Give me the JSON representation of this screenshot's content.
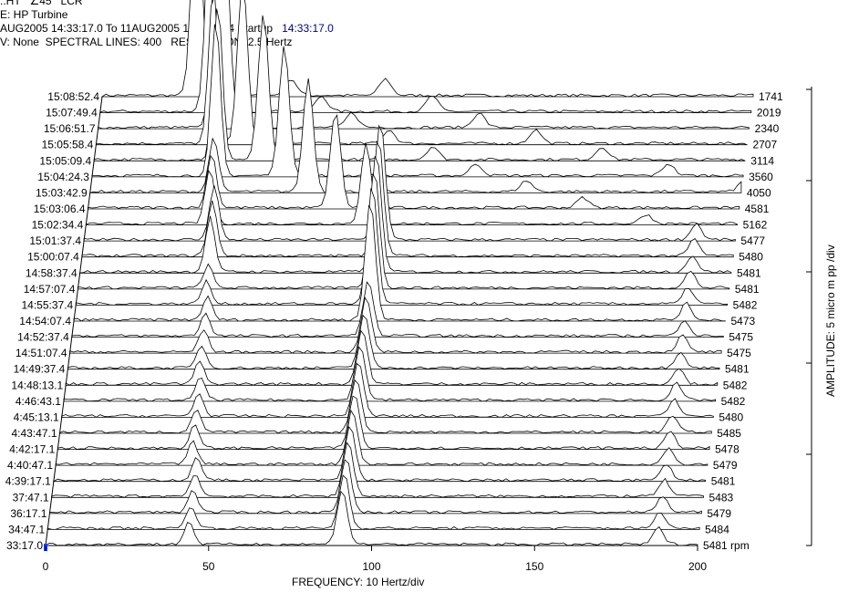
{
  "header": {
    "line0": "..HT   ∠45   LCR",
    "line1": "E: HP Turbine",
    "line2_range": "AUG2005 14:33:17.0 To 11AUG2005 15:09:13.4 Startup",
    "line2_time": "14:33:17.0",
    "line3": "V: None  SPECTRAL LINES: 400   RESOLUTION: 2.5 Hertz"
  },
  "chart_data": {
    "type": "waterfall",
    "title": "",
    "xlabel": "FREQUENCY: 10 Hertz/div",
    "ylabel": "AMPLITUDE: 5 micro m pp /div",
    "x_ticks": [
      0,
      50,
      100,
      150,
      200
    ],
    "xlim": [
      0,
      200
    ],
    "time_labels": [
      "15:08:52.4",
      "15:07:49.4",
      "15:06:51.7",
      "15:05:58.4",
      "15:05:09.4",
      "15:04:24.3",
      "15:03:42.9",
      "15:03:06.4",
      "15:02:34.4",
      "15:01:37.4",
      "15:00:07.4",
      "14:58:37.4",
      "14:57:07.4",
      "14:55:37.4",
      "14:54:07.4",
      "14:52:37.4",
      "14:51:07.4",
      "14:49:37.4",
      "14:48:13.1",
      "4:46:43.1",
      "4:45:13.1",
      "4:43:47.1",
      "4:42:17.1",
      "4:40:47.1",
      "4:39:17.1",
      "37:47.1",
      "36:17.1",
      "34:47.1",
      "33:17.0"
    ],
    "rpm_labels": [
      "1741",
      "2019",
      "2340",
      "2707",
      "3114",
      "3560",
      "4050",
      "4581",
      "5162",
      "5477",
      "5480",
      "5481",
      "5481",
      "5482",
      "5473",
      "5475",
      "5475",
      "5481",
      "5482",
      "5482",
      "5480",
      "5485",
      "5478",
      "5479",
      "5481",
      "5483",
      "5479",
      "5484",
      "5481 rpm"
    ],
    "rpm": [
      1741,
      2019,
      2340,
      2707,
      3114,
      3560,
      4050,
      4581,
      5162,
      5477,
      5480,
      5481,
      5481,
      5482,
      5473,
      5475,
      5475,
      5481,
      5482,
      5482,
      5480,
      5485,
      5478,
      5479,
      5481,
      5483,
      5479,
      5484,
      5481
    ],
    "peaks_hz": {
      "subsync": [
        36,
        38,
        40,
        41,
        42,
        44
      ],
      "one_x": [
        29,
        34,
        39,
        45,
        52,
        59,
        67,
        76,
        86,
        91,
        91,
        91,
        91,
        91,
        91,
        91,
        91,
        91,
        91,
        91,
        91,
        91,
        91,
        91,
        91,
        91,
        91,
        91,
        91
      ],
      "high_band": 188
    }
  }
}
